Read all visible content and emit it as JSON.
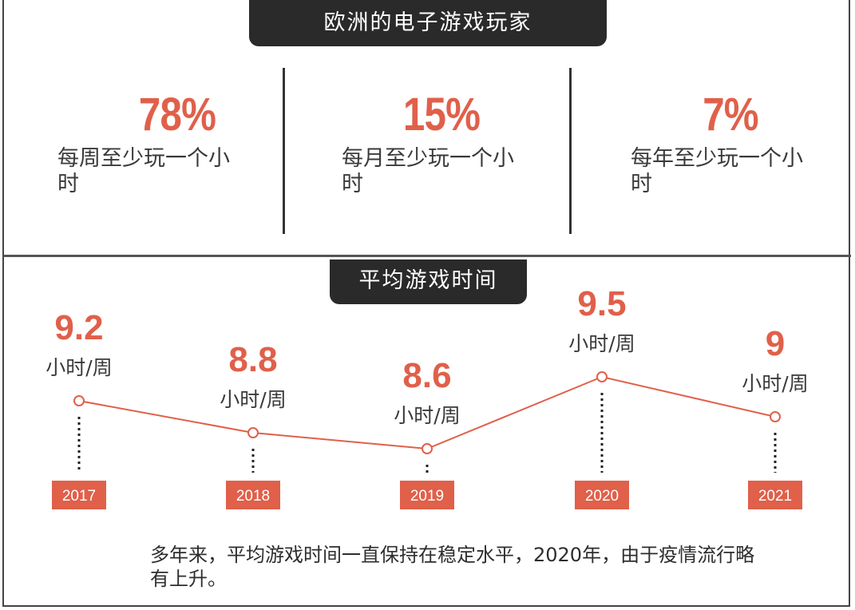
{
  "title": "欧洲的电子游戏玩家",
  "stats": [
    {
      "value": "78%",
      "label": "每周至少玩一个小时"
    },
    {
      "value": "15%",
      "label": "每月至少玩一个小时"
    },
    {
      "value": "7%",
      "label": "每年至少玩一个小时"
    }
  ],
  "section_title": "平均游戏时间",
  "chart_data": {
    "type": "line",
    "title": "平均游戏时间",
    "categories": [
      "2017",
      "2018",
      "2019",
      "2020",
      "2021"
    ],
    "values": [
      9.2,
      8.8,
      8.6,
      9.5,
      9
    ],
    "value_labels": [
      "9.2",
      "8.8",
      "8.6",
      "9.5",
      "9"
    ],
    "unit": "小时/周",
    "ylim": [
      8.6,
      9.5
    ],
    "color": "#e0604a"
  },
  "note": "多年来，平均游戏时间一直保持在稳定水平，2020年，由于疫情流行略有上升。"
}
